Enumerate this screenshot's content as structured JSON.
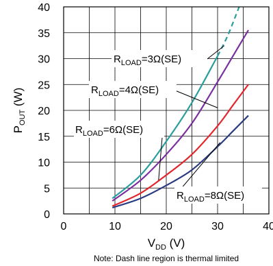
{
  "chart_data": {
    "type": "line",
    "title": "",
    "xlabel": {
      "main": "V",
      "sub": "DD",
      "unit": " (V)"
    },
    "ylabel": {
      "main": "P",
      "sub": "OUT",
      "unit": " (W)"
    },
    "xlim": [
      0,
      40
    ],
    "ylim": [
      0,
      40
    ],
    "x_ticks": [
      "0",
      "10",
      "20",
      "30",
      "40"
    ],
    "y_ticks": [
      "0",
      "5",
      "10",
      "15",
      "20",
      "25",
      "30",
      "35",
      "40"
    ],
    "grid": true,
    "note": "Note: Dash line region is thermal limited",
    "series": [
      {
        "name": "RLOAD=3Ω(SE)",
        "label_main": "R",
        "label_sub": "LOAD",
        "label_rest": "=3Ω(SE)",
        "color": "#2a9d9c",
        "points": [
          [
            9.5,
            3
          ],
          [
            15,
            7.5
          ],
          [
            20,
            14
          ],
          [
            25,
            21.5
          ],
          [
            30,
            30.5
          ]
        ],
        "dashed_points": [
          [
            30,
            30.5
          ],
          [
            32,
            34.5
          ],
          [
            34.2,
            40
          ]
        ]
      },
      {
        "name": "RLOAD=4Ω(SE)",
        "label_main": "R",
        "label_sub": "LOAD",
        "label_rest": "=4Ω(SE)",
        "color": "#7b2f9e",
        "points": [
          [
            9.5,
            2.5
          ],
          [
            15,
            6.5
          ],
          [
            20,
            11.5
          ],
          [
            25,
            17.5
          ],
          [
            30,
            25.5
          ],
          [
            33,
            30.5
          ],
          [
            36,
            35.5
          ]
        ]
      },
      {
        "name": "RLOAD=6Ω(SE)",
        "label_main": "R",
        "label_sub": "LOAD",
        "label_rest": "=6Ω(SE)",
        "color": "#e3262b",
        "points": [
          [
            9.5,
            1.5
          ],
          [
            15,
            4
          ],
          [
            20,
            7.5
          ],
          [
            25,
            11.5
          ],
          [
            30,
            17
          ],
          [
            33,
            21
          ],
          [
            36,
            25
          ]
        ]
      },
      {
        "name": "RLOAD=8Ω(SE)",
        "label_main": "R",
        "label_sub": "LOAD",
        "label_rest": "=8Ω(SE)",
        "color": "#2b3b82",
        "points": [
          [
            9.5,
            1.2
          ],
          [
            15,
            3
          ],
          [
            20,
            5.5
          ],
          [
            25,
            8.5
          ],
          [
            30,
            13
          ],
          [
            33,
            16
          ],
          [
            36,
            19
          ]
        ]
      }
    ]
  }
}
